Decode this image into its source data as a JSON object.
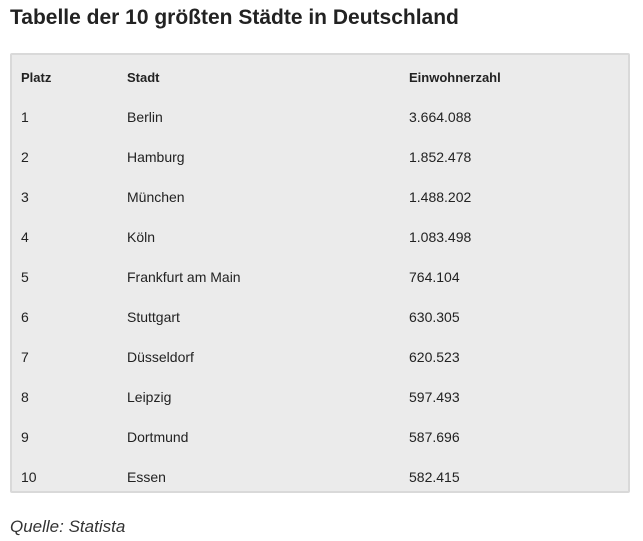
{
  "title": "Tabelle der 10 größten Städte in Deutschland",
  "table": {
    "headers": [
      "Platz",
      "Stadt",
      "Einwohnerzahl"
    ],
    "rows": [
      [
        "1",
        "Berlin",
        "3.664.088"
      ],
      [
        "2",
        "Hamburg",
        "1.852.478"
      ],
      [
        "3",
        "München",
        "1.488.202"
      ],
      [
        "4",
        "Köln",
        "1.083.498"
      ],
      [
        "5",
        "Frankfurt am Main",
        "764.104"
      ],
      [
        "6",
        "Stuttgart",
        "630.305"
      ],
      [
        "7",
        "Düsseldorf",
        "620.523"
      ],
      [
        "8",
        "Leipzig",
        "597.493"
      ],
      [
        "9",
        "Dortmund",
        "587.696"
      ],
      [
        "10",
        "Essen",
        "582.415"
      ]
    ]
  },
  "source": "Quelle: Statista",
  "colors": {
    "table_background": "#ebebeb",
    "table_border": "#d9d9d9",
    "text": "#222222"
  }
}
